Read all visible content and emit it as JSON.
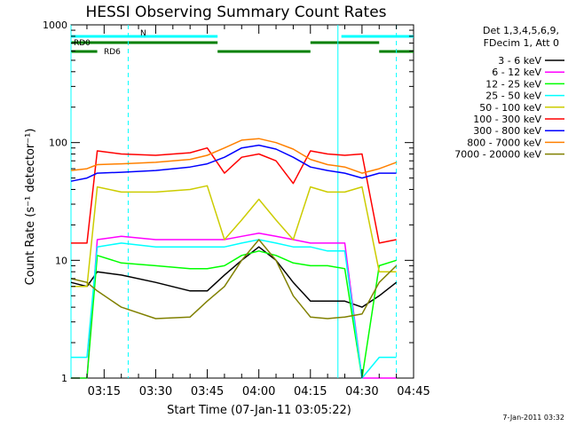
{
  "chart_data": {
    "type": "line",
    "title": "HESSI Observing Summary Count Rates",
    "xlabel": "Start Time (07-Jan-11 03:05:22)",
    "ylabel": "Count Rate (s⁻¹ detector⁻¹)",
    "y_scale": "log",
    "ylim": [
      1,
      1000
    ],
    "xlim": [
      "03:05:22",
      "04:45:00"
    ],
    "x_ticks": [
      "03:15",
      "03:30",
      "03:45",
      "04:00",
      "04:15",
      "04:30",
      "04:45"
    ],
    "y_ticks": [
      1,
      10,
      100,
      1000
    ],
    "legend_header": [
      "Det 1,3,4,5,6,9,",
      "FDecim 1, Att 0"
    ],
    "legend_position": "right",
    "timestamp": "7-Jan-2011 03:32",
    "annotations": {
      "N": {
        "label": "N",
        "color": "#00ffff",
        "start": "03:05:22",
        "end": "04:45:00",
        "gaps": [
          [
            "03:48",
            "04:24"
          ]
        ]
      },
      "RD0": {
        "label": "RD0",
        "color": "#008000",
        "segments": [
          [
            "03:05:22",
            "03:48"
          ],
          [
            "04:15",
            "04:35"
          ]
        ]
      },
      "RD6": {
        "label": "RD6",
        "color": "#008000",
        "segments": [
          [
            "03:05:22",
            "03:13"
          ],
          [
            "03:48",
            "04:15"
          ],
          [
            "04:35",
            "04:45"
          ]
        ]
      }
    },
    "vlines": [
      {
        "time": "03:05:22",
        "color": "#00ffff",
        "style": "solid"
      },
      {
        "time": "03:22",
        "color": "#00ffff",
        "style": "dashed"
      },
      {
        "time": "04:23",
        "color": "#00ffff",
        "style": "solid"
      },
      {
        "time": "04:40",
        "color": "#00ffff",
        "style": "dashed"
      }
    ],
    "series": [
      {
        "name": "3 - 6 keV",
        "color": "#000000",
        "x": [
          "03:05",
          "03:10",
          "03:13",
          "03:20",
          "03:30",
          "03:40",
          "03:45",
          "03:50",
          "03:55",
          "04:00",
          "04:05",
          "04:10",
          "04:15",
          "04:20",
          "04:25",
          "04:30",
          "04:35",
          "04:40"
        ],
        "values": [
          6.5,
          6.0,
          8,
          7.5,
          6.5,
          5.5,
          5.5,
          7.5,
          10,
          13,
          10,
          6.5,
          4.5,
          4.5,
          4.5,
          4.0,
          5.0,
          6.5
        ]
      },
      {
        "name": "6 - 12 keV",
        "color": "#ff00ff",
        "x": [
          "03:05",
          "03:10",
          "03:13",
          "03:20",
          "03:30",
          "03:40",
          "03:45",
          "03:50",
          "03:55",
          "04:00",
          "04:05",
          "04:10",
          "04:15",
          "04:20",
          "04:25",
          "04:30",
          "04:35",
          "04:40"
        ],
        "values": [
          1,
          1,
          15,
          16,
          15,
          15,
          15,
          15,
          16,
          17,
          16,
          15,
          14,
          14,
          14,
          1,
          1,
          1
        ]
      },
      {
        "name": "12 - 25 keV",
        "color": "#00ff00",
        "x": [
          "03:05",
          "03:10",
          "03:13",
          "03:20",
          "03:30",
          "03:40",
          "03:45",
          "03:50",
          "03:55",
          "04:00",
          "04:05",
          "04:10",
          "04:15",
          "04:20",
          "04:25",
          "04:30",
          "04:35",
          "04:40"
        ],
        "values": [
          1,
          1,
          11,
          9.5,
          9,
          8.5,
          8.5,
          9,
          11,
          12,
          11,
          9.5,
          9,
          9,
          8.5,
          1,
          9,
          10
        ]
      },
      {
        "name": "25 - 50 keV",
        "color": "#00ffff",
        "x": [
          "03:05",
          "03:10",
          "03:13",
          "03:20",
          "03:30",
          "03:40",
          "03:45",
          "03:50",
          "03:55",
          "04:00",
          "04:05",
          "04:10",
          "04:15",
          "04:20",
          "04:25",
          "04:30",
          "04:35",
          "04:40"
        ],
        "values": [
          1.5,
          1.5,
          13,
          14,
          13,
          13,
          13,
          13,
          14,
          15,
          14,
          13,
          13,
          12,
          12,
          1,
          1.5,
          1.5
        ]
      },
      {
        "name": "50 - 100 keV",
        "color": "#cccc00",
        "x": [
          "03:05",
          "03:10",
          "03:13",
          "03:20",
          "03:30",
          "03:40",
          "03:45",
          "03:50",
          "03:55",
          "04:00",
          "04:05",
          "04:10",
          "04:15",
          "04:20",
          "04:25",
          "04:30",
          "04:35",
          "04:40"
        ],
        "values": [
          6,
          6,
          42,
          38,
          38,
          40,
          43,
          15,
          22,
          33,
          22,
          15,
          42,
          38,
          38,
          42,
          8,
          8
        ]
      },
      {
        "name": "100 - 300 keV",
        "color": "#ff0000",
        "x": [
          "03:05",
          "03:10",
          "03:13",
          "03:20",
          "03:30",
          "03:40",
          "03:45",
          "03:50",
          "03:55",
          "04:00",
          "04:05",
          "04:10",
          "04:15",
          "04:20",
          "04:25",
          "04:30",
          "04:35",
          "04:40"
        ],
        "values": [
          14,
          14,
          85,
          80,
          78,
          82,
          90,
          55,
          75,
          80,
          70,
          45,
          85,
          80,
          78,
          80,
          14,
          15
        ]
      },
      {
        "name": "300 - 800 keV",
        "color": "#0000ff",
        "x": [
          "03:05",
          "03:10",
          "03:13",
          "03:20",
          "03:30",
          "03:40",
          "03:45",
          "03:50",
          "03:55",
          "04:00",
          "04:05",
          "04:10",
          "04:15",
          "04:20",
          "04:25",
          "04:30",
          "04:35",
          "04:40"
        ],
        "values": [
          47,
          50,
          55,
          56,
          58,
          62,
          66,
          75,
          90,
          95,
          88,
          75,
          62,
          58,
          55,
          50,
          55,
          55
        ]
      },
      {
        "name": "800 - 7000 keV",
        "color": "#ff8000",
        "x": [
          "03:05",
          "03:10",
          "03:13",
          "03:20",
          "03:30",
          "03:40",
          "03:45",
          "03:50",
          "03:55",
          "04:00",
          "04:05",
          "04:10",
          "04:15",
          "04:20",
          "04:25",
          "04:30",
          "04:35",
          "04:40"
        ],
        "values": [
          58,
          60,
          65,
          66,
          68,
          72,
          78,
          90,
          105,
          108,
          100,
          88,
          72,
          65,
          62,
          55,
          60,
          68
        ]
      },
      {
        "name": "7000 - 20000 keV",
        "color": "#808000",
        "x": [
          "03:05",
          "03:10",
          "03:13",
          "03:20",
          "03:30",
          "03:40",
          "03:45",
          "03:50",
          "03:55",
          "04:00",
          "04:05",
          "04:10",
          "04:15",
          "04:20",
          "04:25",
          "04:30",
          "04:35",
          "04:40"
        ],
        "values": [
          7,
          6.5,
          5.5,
          4.0,
          3.2,
          3.3,
          4.5,
          6,
          10,
          15,
          10,
          5,
          3.3,
          3.2,
          3.3,
          3.5,
          6.5,
          9
        ]
      }
    ]
  }
}
